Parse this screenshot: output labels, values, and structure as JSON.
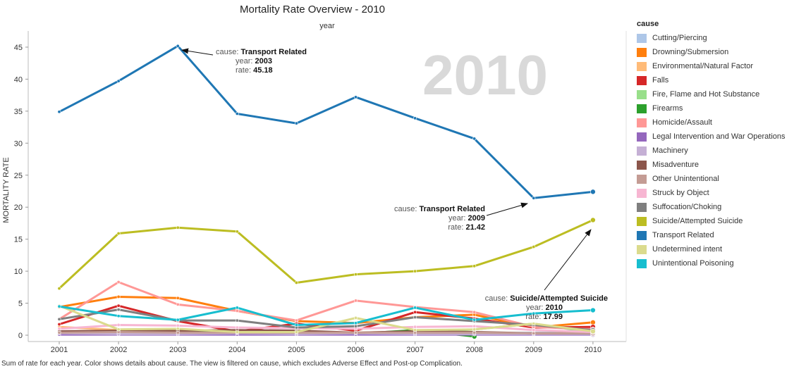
{
  "chart_data": {
    "type": "line",
    "title": "Mortality Rate Overview - 2010",
    "x_header": "year",
    "ylabel": "MORTALITY   RATE",
    "watermark": "2010",
    "x": [
      "2001",
      "2002",
      "2003",
      "2004",
      "2005",
      "2006",
      "2007",
      "2008",
      "2009",
      "2010"
    ],
    "y_ticks": [
      "0",
      "5",
      "10",
      "15",
      "20",
      "25",
      "30",
      "35",
      "40",
      "45"
    ],
    "ylim": [
      -0.5,
      47.5
    ],
    "grid": false,
    "legend_title": "cause",
    "legend_position": "right",
    "series": [
      {
        "name": "Cutting/Piercing",
        "color": "#aec7e8",
        "values": [
          0.3,
          0.4,
          0.2,
          0.3,
          0.3,
          0.3,
          0.4,
          0.3,
          0.4,
          0.4
        ]
      },
      {
        "name": "Drowning/Submersion",
        "color": "#ff7f0e",
        "values": [
          4.4,
          6.0,
          5.8,
          3.8,
          2.2,
          1.9,
          2.8,
          3.2,
          1.2,
          2.0
        ]
      },
      {
        "name": "Environmental/Natural Factor",
        "color": "#ffbb78",
        "values": [
          1.3,
          0.8,
          0.6,
          0.5,
          0.5,
          0.4,
          0.6,
          0.4,
          0.3,
          0.3
        ]
      },
      {
        "name": "Falls",
        "color": "#d62728",
        "values": [
          1.7,
          4.6,
          2.2,
          0.6,
          1.8,
          0.7,
          3.6,
          2.6,
          1.2,
          1.3
        ]
      },
      {
        "name": "Fire, Flame and Hot Substance",
        "color": "#98df8a",
        "values": [
          0.5,
          0.4,
          0.3,
          0.3,
          0.2,
          0.3,
          0.4,
          0.9,
          1.8,
          0.4
        ]
      },
      {
        "name": "Firearms",
        "color": "#2ca02c",
        "values": [
          0.4,
          0.5,
          0.5,
          0.5,
          0.6,
          0.2,
          0.8,
          -0.2,
          null,
          null
        ]
      },
      {
        "name": "Homicide/Assault",
        "color": "#ff9896",
        "values": [
          2.5,
          8.3,
          4.8,
          3.8,
          2.3,
          5.4,
          4.4,
          3.6,
          1.3,
          0.9
        ]
      },
      {
        "name": "Legal Intervention and War Operations",
        "color": "#9467bd",
        "values": [
          0.1,
          0.1,
          0.1,
          0.1,
          0.1,
          0.1,
          0.1,
          0.1,
          0.1,
          0.1
        ]
      },
      {
        "name": "Machinery",
        "color": "#c5b0d5",
        "values": [
          0.3,
          0.2,
          0.2,
          0.3,
          0.2,
          0.3,
          0.2,
          0.2,
          0.2,
          0.2
        ]
      },
      {
        "name": "Misadventure",
        "color": "#8c564b",
        "values": [
          0.6,
          0.7,
          0.7,
          0.8,
          0.7,
          0.4,
          0.6,
          0.5,
          0.3,
          0.3
        ]
      },
      {
        "name": "Other Unintentional",
        "color": "#c49c94",
        "values": [
          0.4,
          0.5,
          0.4,
          0.4,
          0.4,
          0.4,
          0.4,
          0.4,
          0.3,
          0.3
        ]
      },
      {
        "name": "Struck by Object",
        "color": "#f7b6d2",
        "values": [
          1.0,
          1.6,
          1.5,
          1.2,
          1.1,
          1.0,
          1.3,
          1.4,
          0.8,
          0.5
        ]
      },
      {
        "name": "Suffocation/Choking",
        "color": "#7f7f7f",
        "values": [
          2.5,
          4.0,
          2.3,
          2.3,
          1.2,
          1.4,
          2.8,
          2.2,
          1.6,
          0.8
        ]
      },
      {
        "name": "Suicide/Attempted Suicide",
        "color": "#bcbd22",
        "values": [
          7.3,
          15.9,
          16.8,
          16.2,
          8.2,
          9.5,
          10.0,
          10.8,
          13.8,
          17.99
        ]
      },
      {
        "name": "Transport Related",
        "color": "#1f77b4",
        "values": [
          34.9,
          39.7,
          45.18,
          34.6,
          33.1,
          37.2,
          33.9,
          30.7,
          21.42,
          22.4
        ]
      },
      {
        "name": "Undetermined intent",
        "color": "#dbdb8d",
        "values": [
          4.6,
          0.9,
          1.0,
          0.5,
          0.5,
          2.7,
          0.8,
          0.9,
          1.8,
          0.6
        ]
      },
      {
        "name": "Unintentional Poisoning",
        "color": "#17becf",
        "values": [
          4.5,
          3.0,
          2.4,
          4.3,
          1.6,
          1.9,
          4.3,
          2.4,
          3.4,
          3.9
        ]
      }
    ],
    "annotations": [
      {
        "cause_label": "cause: ",
        "cause": "Transport Related",
        "year_label": "year: ",
        "year": "2003",
        "rate_label": "rate: ",
        "rate": "45.18"
      },
      {
        "cause_label": "cause: ",
        "cause": "Transport Related",
        "year_label": "year: ",
        "year": "2009",
        "rate_label": "rate: ",
        "rate": "21.42"
      },
      {
        "cause_label": "cause: ",
        "cause": "Suicide/Attempted Suicide",
        "year_label": "year: ",
        "year": "2010",
        "rate_label": "rate: ",
        "rate": "17.99"
      }
    ]
  },
  "footer": "Sum of rate for each year.  Color shows details about cause. The view is filtered on cause, which excludes Adverse Effect and Post-op Complication."
}
